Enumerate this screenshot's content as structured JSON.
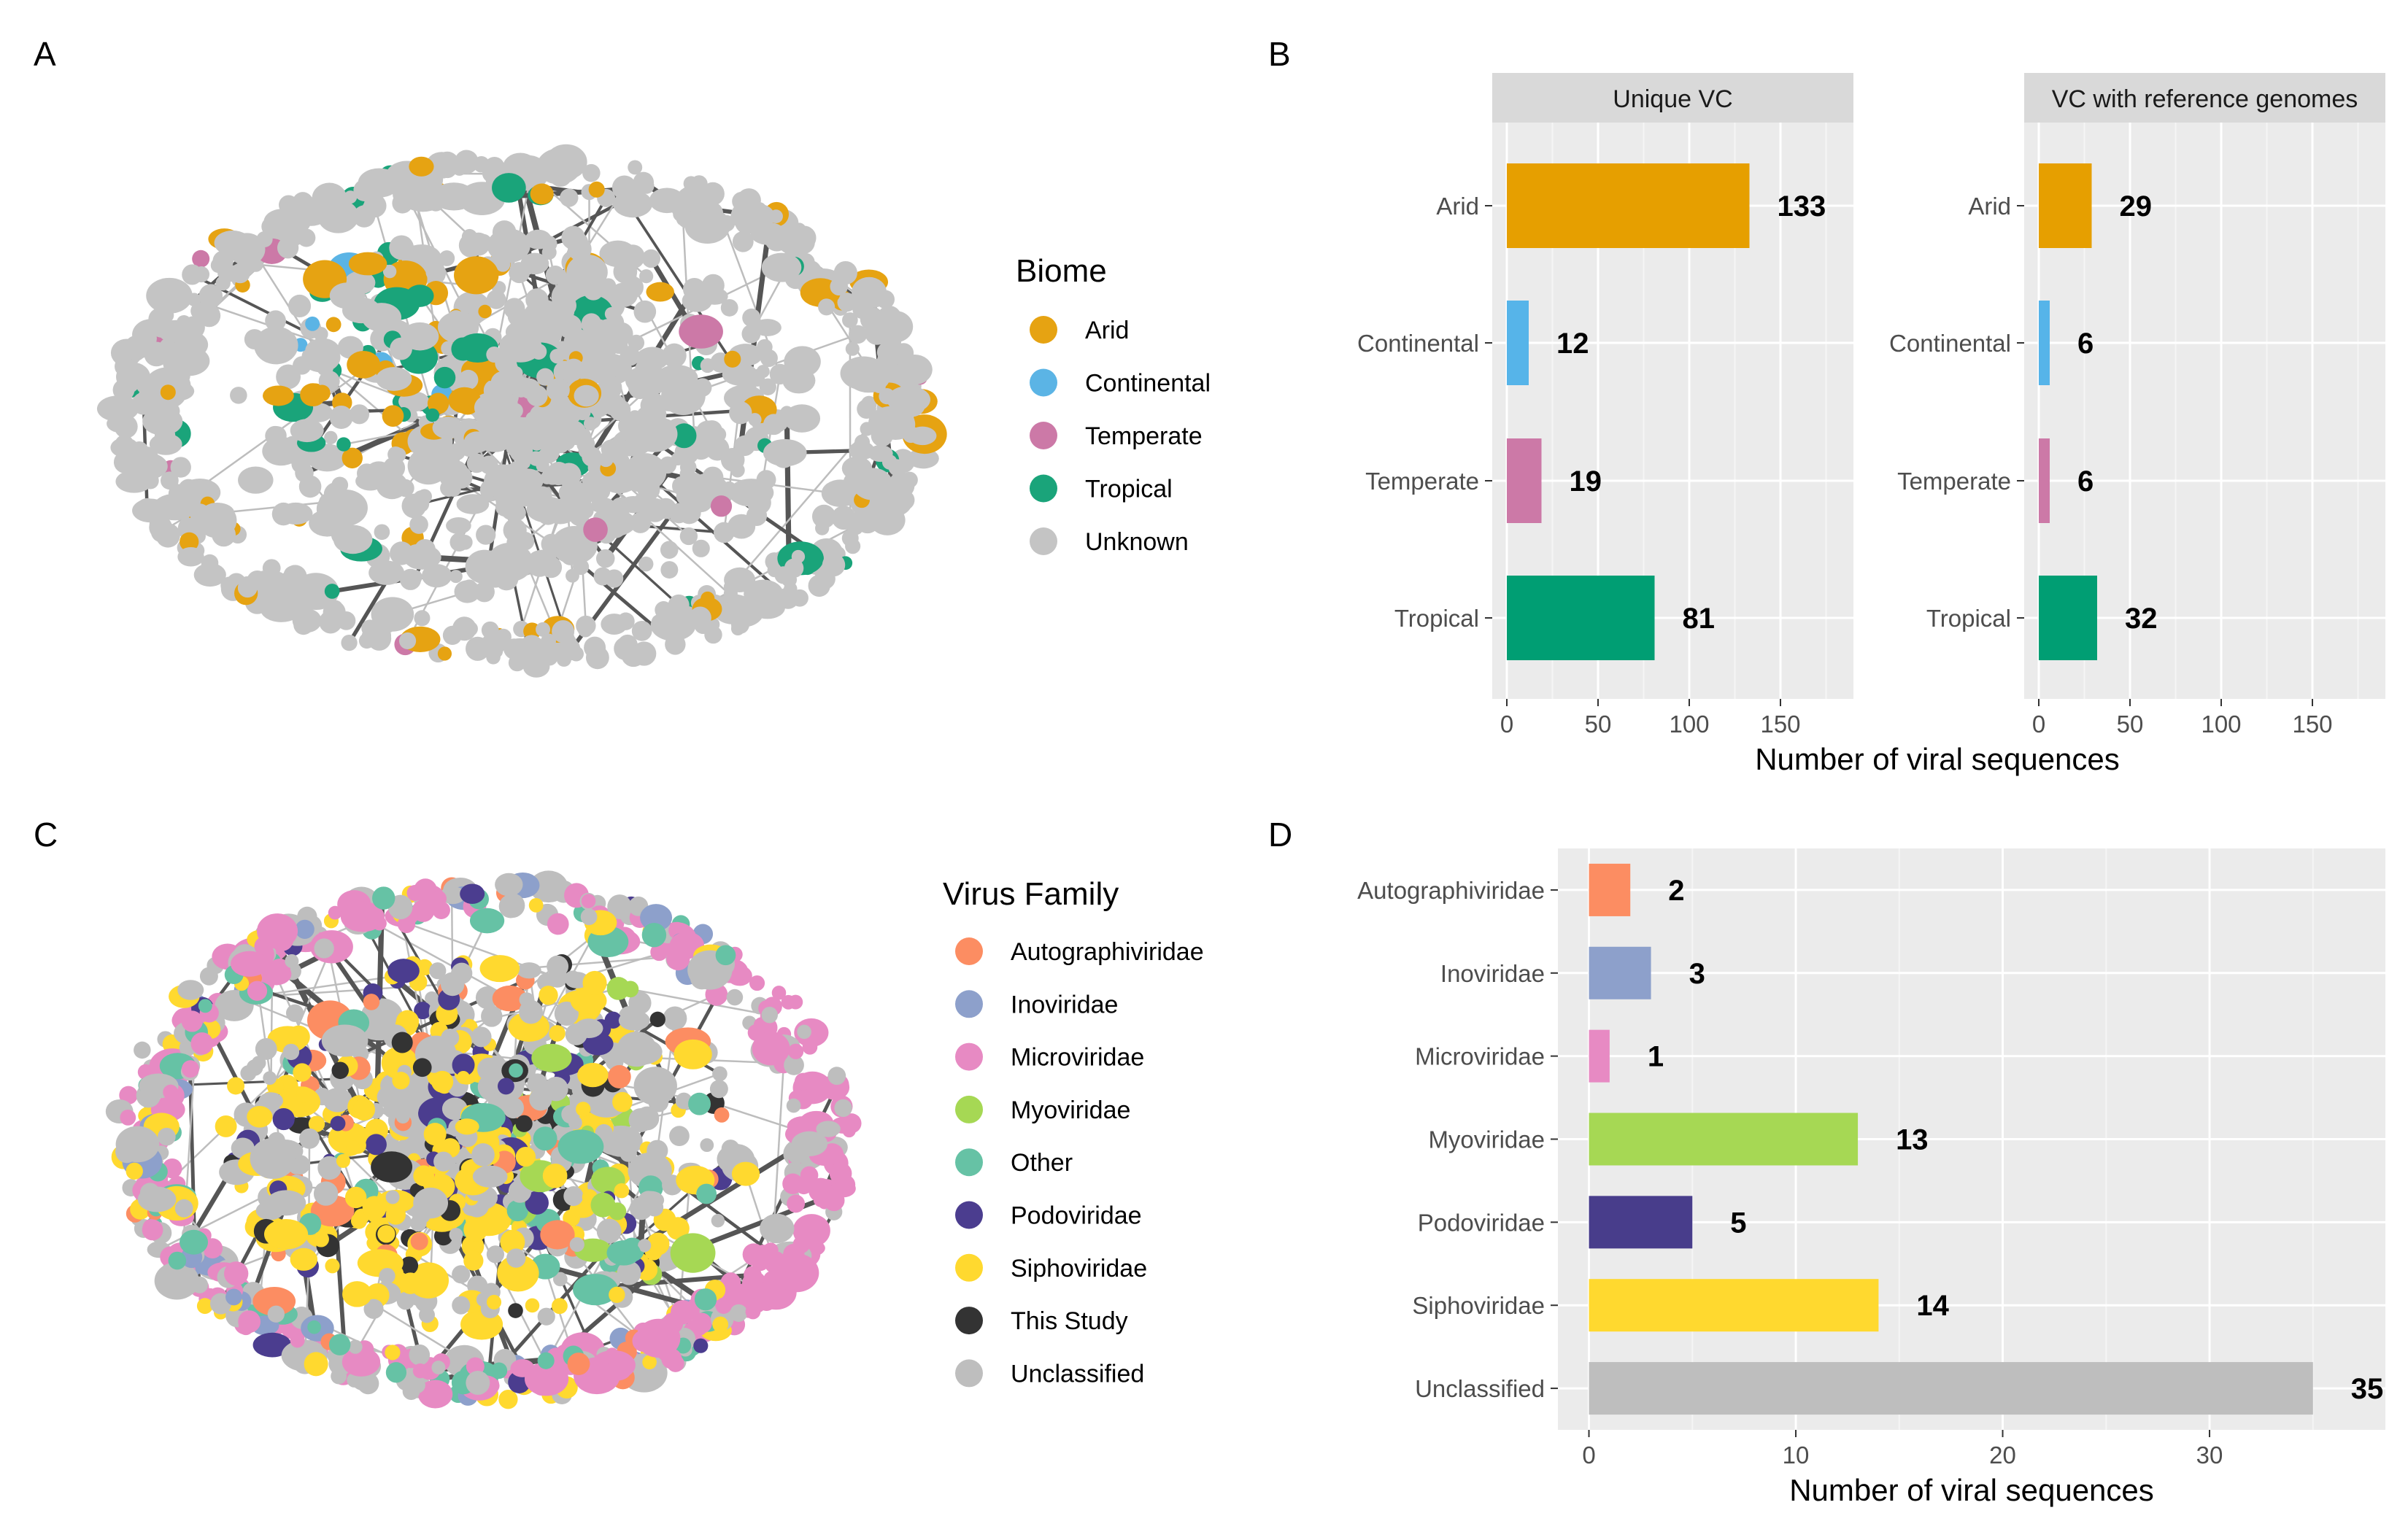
{
  "panels": {
    "A": "A",
    "B": "B",
    "C": "C",
    "D": "D"
  },
  "network_a": {
    "legend_title": "Biome",
    "legend": [
      {
        "label": "Arid",
        "color": "#E6A312"
      },
      {
        "label": "Continental",
        "color": "#5BB4E5"
      },
      {
        "label": "Temperate",
        "color": "#CC79A7"
      },
      {
        "label": "Tropical",
        "color": "#1AA47A"
      },
      {
        "label": "Unknown",
        "color": "#C4C4C4"
      }
    ]
  },
  "network_c": {
    "legend_title": "Virus Family",
    "legend": [
      {
        "label": "Autographiviridae",
        "color": "#FC8D62"
      },
      {
        "label": "Inoviridae",
        "color": "#8DA0CB"
      },
      {
        "label": "Microviridae",
        "color": "#E78AC3"
      },
      {
        "label": "Myoviridae",
        "color": "#A6D854"
      },
      {
        "label": "Other",
        "color": "#66C2A5"
      },
      {
        "label": "Podoviridae",
        "color": "#4B3D8F"
      },
      {
        "label": "Siphoviridae",
        "color": "#FFD92F"
      },
      {
        "label": "This Study",
        "color": "#333333"
      },
      {
        "label": "Unclassified",
        "color": "#BEBEBE"
      }
    ]
  },
  "chart_data": [
    {
      "type": "bar",
      "orientation": "horizontal",
      "panel": "B",
      "facets": [
        "Unique VC",
        "VC with reference genomes"
      ],
      "categories": [
        "Arid",
        "Continental",
        "Temperate",
        "Tropical"
      ],
      "colors": [
        "#E69F00",
        "#56B4E9",
        "#CC79A7",
        "#009E73"
      ],
      "series": [
        {
          "name": "Unique VC",
          "values": [
            133,
            12,
            19,
            81
          ]
        },
        {
          "name": "VC with reference genomes",
          "values": [
            29,
            6,
            6,
            32
          ]
        }
      ],
      "xlabel": "Number of viral sequences",
      "ylabel": "",
      "xlim": [
        0,
        190
      ],
      "xticks": [
        0,
        50,
        100,
        150
      ],
      "grid": true,
      "legend": "none"
    },
    {
      "type": "bar",
      "orientation": "horizontal",
      "panel": "D",
      "categories": [
        "Autographiviridae",
        "Inoviridae",
        "Microviridae",
        "Myoviridae",
        "Podoviridae",
        "Siphoviridae",
        "Unclassified"
      ],
      "values": [
        2,
        3,
        1,
        13,
        5,
        14,
        35
      ],
      "colors": [
        "#FC8D62",
        "#8DA0CB",
        "#E78AC3",
        "#A6D854",
        "#483D8B",
        "#FFD92F",
        "#BEBEBE"
      ],
      "xlabel": "Number of viral sequences",
      "ylabel": "",
      "xlim": [
        -1.5,
        38.5
      ],
      "xticks": [
        0,
        10,
        20,
        30
      ],
      "grid": true,
      "legend": "none"
    }
  ]
}
